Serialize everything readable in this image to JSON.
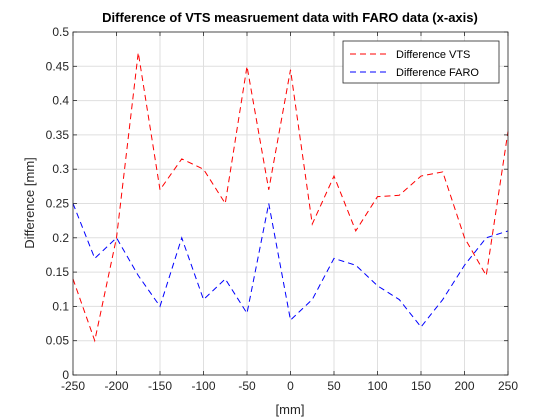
{
  "chart_data": {
    "type": "line",
    "title": "Difference of VTS measruement data with FARO data (x-axis)",
    "xlabel": "[mm]",
    "ylabel": "Difference [mm]",
    "xlim": [
      -250,
      250
    ],
    "ylim": [
      0,
      0.5
    ],
    "xticks": [
      -250,
      -200,
      -150,
      -100,
      -50,
      0,
      50,
      100,
      150,
      200,
      250
    ],
    "yticks": [
      0,
      0.05,
      0.1,
      0.15,
      0.2,
      0.25,
      0.3,
      0.35,
      0.4,
      0.45,
      0.5
    ],
    "xtick_labels": [
      "-250",
      "-200",
      "-150",
      "-100",
      "-50",
      "0",
      "50",
      "100",
      "150",
      "200",
      "250"
    ],
    "ytick_labels": [
      "0",
      "0.05",
      "0.1",
      "0.15",
      "0.2",
      "0.25",
      "0.3",
      "0.35",
      "0.4",
      "0.45",
      "0.5"
    ],
    "grid": true,
    "legend_position": "top-right",
    "x": [
      -250,
      -225,
      -200,
      -175,
      -150,
      -125,
      -100,
      -75,
      -50,
      -25,
      0,
      25,
      50,
      75,
      100,
      125,
      150,
      175,
      200,
      225,
      250
    ],
    "series": [
      {
        "name": "Difference VTS",
        "color": "#ff0000",
        "style": "dashed",
        "values": [
          0.14,
          0.05,
          0.2,
          0.47,
          0.27,
          0.315,
          0.3,
          0.25,
          0.45,
          0.27,
          0.445,
          0.22,
          0.29,
          0.21,
          0.26,
          0.262,
          0.29,
          0.296,
          0.2,
          0.145,
          0.355
        ]
      },
      {
        "name": "Difference FARO",
        "color": "#0000ff",
        "style": "dashed",
        "values": [
          0.25,
          0.17,
          0.2,
          0.145,
          0.1,
          0.2,
          0.11,
          0.14,
          0.09,
          0.25,
          0.08,
          0.11,
          0.17,
          0.16,
          0.13,
          0.11,
          0.07,
          0.11,
          0.16,
          0.2,
          0.21
        ]
      }
    ]
  }
}
